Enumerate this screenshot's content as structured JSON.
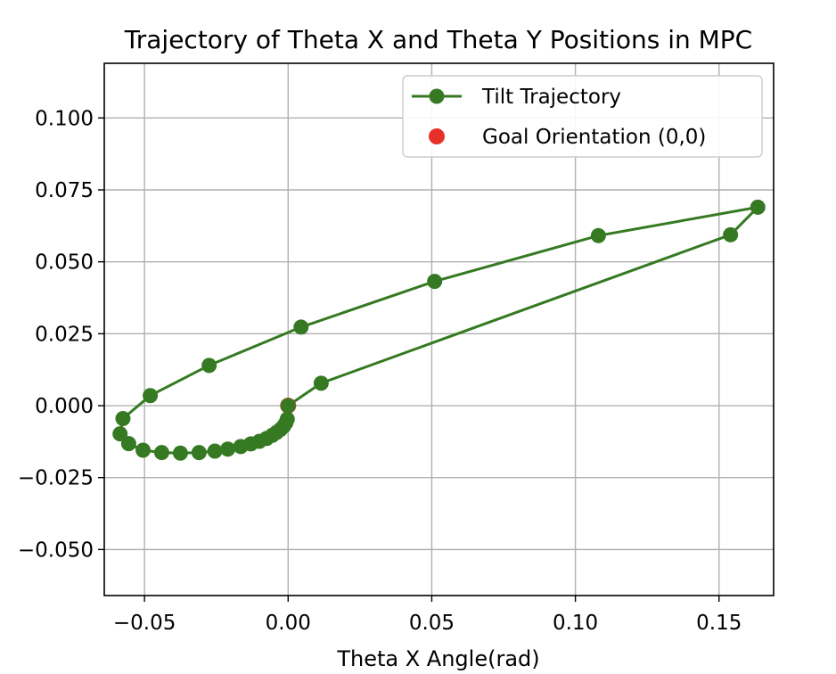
{
  "chart_data": {
    "type": "line",
    "title": "Trajectory of Theta X and Theta Y Positions in MPC",
    "xlabel": "Theta X Angle(rad)",
    "ylabel": "",
    "xlim": [
      -0.064,
      0.169
    ],
    "ylim": [
      -0.066,
      0.119
    ],
    "x_ticks": [
      -0.05,
      0.0,
      0.05,
      0.1,
      0.15
    ],
    "x_tick_labels": [
      "−0.05",
      "0.00",
      "0.05",
      "0.10",
      "0.15"
    ],
    "y_ticks": [
      -0.05,
      -0.025,
      0.0,
      0.025,
      0.05,
      0.075,
      0.1
    ],
    "y_tick_labels": [
      "−0.050",
      "−0.025",
      "0.000",
      "0.025",
      "0.050",
      "0.075",
      "0.100"
    ],
    "grid": true,
    "legend_position": "top-right",
    "colors": {
      "trajectory": "#357a22",
      "goal": "#e8302a",
      "grid": "#b0b0b0",
      "axes": "#000000"
    },
    "series": [
      {
        "name": "Tilt Trajectory",
        "marker": "circle",
        "points": [
          [
            0.0,
            0.0
          ],
          [
            0.0115,
            0.0078
          ],
          [
            0.154,
            0.0594
          ],
          [
            0.1635,
            0.069
          ],
          [
            0.108,
            0.0591
          ],
          [
            0.051,
            0.0432
          ],
          [
            0.0045,
            0.0273
          ],
          [
            -0.0275,
            0.014
          ],
          [
            -0.048,
            0.0035
          ],
          [
            -0.0575,
            -0.0045
          ],
          [
            -0.0585,
            -0.0098
          ],
          [
            -0.0555,
            -0.0132
          ],
          [
            -0.0505,
            -0.0155
          ],
          [
            -0.044,
            -0.0163
          ],
          [
            -0.0375,
            -0.0165
          ],
          [
            -0.031,
            -0.0163
          ],
          [
            -0.0255,
            -0.0158
          ],
          [
            -0.021,
            -0.0151
          ],
          [
            -0.0165,
            -0.0142
          ],
          [
            -0.013,
            -0.0133
          ],
          [
            -0.01,
            -0.0124
          ],
          [
            -0.0075,
            -0.0114
          ],
          [
            -0.0055,
            -0.0103
          ],
          [
            -0.004,
            -0.0093
          ],
          [
            -0.0027,
            -0.0083
          ],
          [
            -0.0016,
            -0.0072
          ],
          [
            -0.0008,
            -0.006
          ],
          [
            -0.0003,
            -0.0047
          ]
        ]
      },
      {
        "name": "Goal Orientation (0,0)",
        "type": "scatter",
        "points": [
          [
            0.0,
            0.0
          ]
        ]
      }
    ]
  }
}
